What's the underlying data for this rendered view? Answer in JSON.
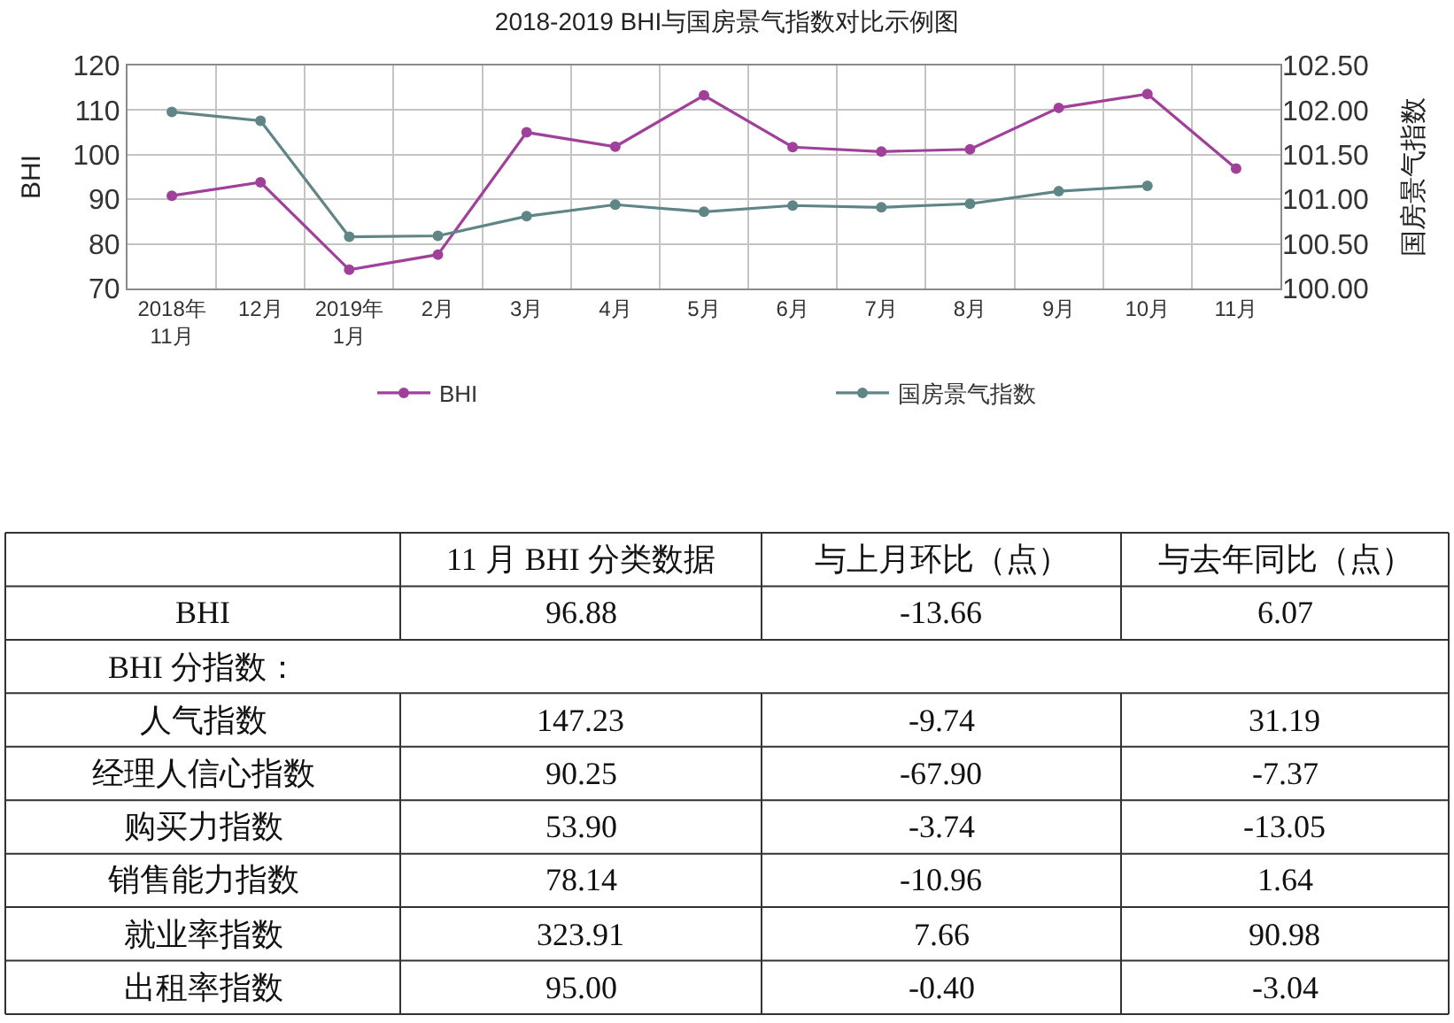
{
  "chart_data": [
    {
      "type": "line",
      "title": "2018-2019 BHI与国房景气指数对比示例图",
      "ylabel": "BHI",
      "y2label": "国房景气指数",
      "categories": [
        "2018年11月",
        "12月",
        "2019年1月",
        "2月",
        "3月",
        "4月",
        "5月",
        "6月",
        "7月",
        "8月",
        "9月",
        "10月",
        "11月"
      ],
      "series": [
        {
          "name": "BHI",
          "color": "#a0409a",
          "values": [
            90.8,
            93.8,
            74.2,
            77.6,
            105.0,
            101.8,
            113.3,
            101.7,
            100.7,
            101.2,
            110.5,
            113.6,
            96.9
          ]
        },
        {
          "name": "国房景气指数",
          "color": "#5f8586",
          "axis": "y2",
          "values": [
            101.98,
            101.88,
            100.58,
            100.59,
            100.81,
            100.94,
            100.86,
            100.93,
            100.91,
            100.95,
            101.09,
            101.15,
            null
          ]
        }
      ],
      "ylim": [
        70,
        120
      ],
      "yticks": [
        70,
        80,
        90,
        100,
        110,
        120
      ],
      "y2lim": [
        100,
        102.5
      ],
      "y2ticks": [
        {
          "value": 100,
          "label": "100.00"
        },
        {
          "value": 100.5,
          "label": "100.50"
        },
        {
          "value": 101,
          "label": "101.00"
        },
        {
          "value": 101.5,
          "label": "101.50"
        },
        {
          "value": 102,
          "label": "102.00"
        },
        {
          "value": 102.5,
          "label": "102.50"
        }
      ],
      "grid": true,
      "legend": "bottom",
      "marker": "circle"
    },
    {
      "type": "other",
      "categories": [
        null,
        "11 月 BHI 分类数据",
        "与上月环比（点）",
        "与去年同比（点）"
      ],
      "y_categories": [
        "BHI",
        "BHI 分指数：",
        "人气指数",
        "经理人信心指数",
        "购买力指数",
        "销售能力指数",
        "就业率指数",
        "出租率指数"
      ],
      "cell_labels": [
        [
          "96.88",
          "-13.66",
          "6.07"
        ],
        [
          null,
          null,
          null
        ],
        [
          "147.23",
          "-9.74",
          "31.19"
        ],
        [
          "90.25",
          "-67.90",
          "-7.37"
        ],
        [
          "53.90",
          "-3.74",
          "-13.05"
        ],
        [
          "78.14",
          "-10.96",
          "1.64"
        ],
        [
          "323.91",
          "7.66",
          "90.98"
        ],
        [
          "95.00",
          "-0.40",
          "-3.04"
        ]
      ]
    }
  ]
}
